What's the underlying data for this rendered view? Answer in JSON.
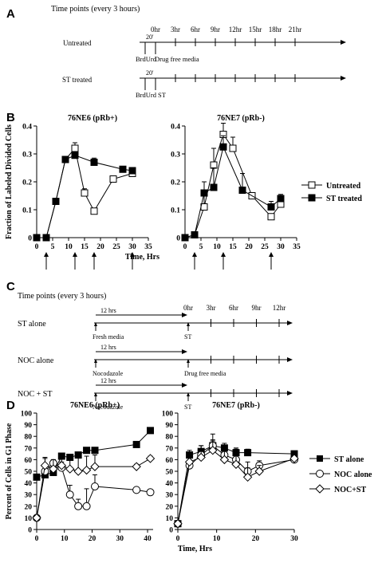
{
  "panel_a": {
    "label": "A",
    "heading": "Time points (every 3 hours)",
    "row1_label": "Untreated",
    "row2_label": "ST treated",
    "timepoints": [
      "0hr",
      "3hr",
      "6hr",
      "9hr",
      "12hr",
      "15hr",
      "18hr",
      "21hr"
    ],
    "gap": "20'",
    "row1_notes": [
      "BrdUrd",
      "Drug free media"
    ],
    "row2_notes": [
      "BrdUrd",
      "ST"
    ]
  },
  "panel_b": {
    "label": "B",
    "legend": [
      "Untreated",
      "ST treated"
    ]
  },
  "panel_c": {
    "label": "C",
    "heading": "Time points (every 3 hours)",
    "timepoints": [
      "0hr",
      "3hr",
      "6hr",
      "9hr",
      "12hr"
    ],
    "interval": "12 hrs",
    "rows": [
      {
        "label": "ST alone",
        "left_note": "Fresh media",
        "right_note": "ST"
      },
      {
        "label": "NOC alone",
        "left_note": "Nocodazole",
        "right_note": "Drug free media"
      },
      {
        "label": "NOC + ST",
        "left_note": "Nocodazole",
        "right_note": "ST"
      }
    ]
  },
  "panel_d": {
    "label": "D",
    "legend": [
      "ST alone",
      "NOC alone",
      "NOC+ST"
    ]
  },
  "chart_data": [
    {
      "type": "line",
      "panel": "B",
      "title": "76NE6 (pRb+)",
      "xlabel": "Time, Hrs",
      "ylabel": "Fraction of Labeled Divided Cells",
      "xlim": [
        0,
        35
      ],
      "ylim": [
        0,
        0.4
      ],
      "xticks": [
        0,
        5,
        10,
        15,
        20,
        25,
        30,
        35
      ],
      "yticks": [
        0,
        0.1,
        0.2,
        0.3,
        0.4
      ],
      "ytick_labels": [
        "0",
        "0.1",
        "0.2",
        "0.3",
        "0.4"
      ],
      "grid": false,
      "arrows_at": [
        3,
        12,
        18,
        30
      ],
      "series": [
        {
          "name": "Untreated",
          "marker": "open-square",
          "x": [
            0,
            3,
            6,
            9,
            12,
            15,
            18,
            24,
            30
          ],
          "y": [
            0.0,
            0.0,
            0.13,
            0.28,
            0.32,
            0.16,
            0.095,
            0.21,
            0.23
          ],
          "err": [
            0.003,
            0.003,
            0.005,
            0.008,
            0.02,
            0.015,
            0.005,
            0.005,
            0.015
          ]
        },
        {
          "name": "ST treated",
          "marker": "filled-square",
          "x": [
            0,
            3,
            6,
            9,
            12,
            18,
            27,
            30
          ],
          "y": [
            0.0,
            0.0,
            0.13,
            0.28,
            0.295,
            0.27,
            0.245,
            0.24
          ],
          "err": [
            0.003,
            0.003,
            0.005,
            0.008,
            0.012,
            0.015,
            0.005,
            0.01
          ]
        }
      ]
    },
    {
      "type": "line",
      "panel": "B",
      "title": "76NE7 (pRb-)",
      "xlabel": "",
      "ylabel": "",
      "xlim": [
        0,
        35
      ],
      "ylim": [
        0,
        0.4
      ],
      "xticks": [
        0,
        5,
        10,
        15,
        20,
        25,
        30,
        35
      ],
      "yticks": [
        0,
        0.1,
        0.2,
        0.3,
        0.4
      ],
      "ytick_labels": [
        "0",
        "0.1",
        "0.2",
        "0.3",
        "0.4"
      ],
      "grid": false,
      "arrows_at": [
        3,
        12,
        27
      ],
      "series": [
        {
          "name": "Untreated",
          "marker": "open-square",
          "x": [
            0,
            3,
            6,
            9,
            12,
            15,
            21,
            27,
            30
          ],
          "y": [
            0.0,
            0.01,
            0.11,
            0.26,
            0.37,
            0.32,
            0.15,
            0.075,
            0.12
          ],
          "err": [
            0.003,
            0.003,
            0.05,
            0.06,
            0.04,
            0.04,
            0.005,
            0.01,
            0.02
          ]
        },
        {
          "name": "ST treated",
          "marker": "filled-square",
          "x": [
            0,
            3,
            6,
            9,
            12,
            18,
            27,
            30
          ],
          "y": [
            0.0,
            0.01,
            0.16,
            0.18,
            0.325,
            0.17,
            0.11,
            0.14
          ],
          "err": [
            0.003,
            0.003,
            0.04,
            0.07,
            0.04,
            0.06,
            0.02,
            0.015
          ]
        }
      ]
    },
    {
      "type": "line",
      "panel": "D",
      "title": "76NE6 (pRb+)",
      "xlabel": "Time, Hrs",
      "ylabel": "Percent of Cells in G1 Phase",
      "xlim": [
        0,
        42
      ],
      "ylim": [
        0,
        100
      ],
      "xticks": [
        0,
        10,
        20,
        30,
        40
      ],
      "yticks": [
        0,
        10,
        20,
        30,
        40,
        50,
        60,
        70,
        80,
        90,
        100
      ],
      "ytick_labels": [
        "0",
        "10",
        "20",
        "30",
        "40",
        "50",
        "60",
        "70",
        "80",
        "90",
        "100"
      ],
      "grid": false,
      "series": [
        {
          "name": "ST alone",
          "marker": "filled-square",
          "x": [
            0,
            3,
            6,
            9,
            12,
            15,
            18,
            21,
            36,
            41
          ],
          "y": [
            45,
            47,
            49,
            63,
            62,
            64,
            68,
            68,
            73,
            85
          ],
          "err": [
            1,
            2,
            2,
            2,
            2,
            2,
            2,
            2,
            2,
            2
          ]
        },
        {
          "name": "NOC alone",
          "marker": "open-circle",
          "x": [
            0,
            3,
            6,
            9,
            12,
            15,
            18,
            21,
            36,
            41
          ],
          "y": [
            10,
            50,
            57,
            53,
            30,
            20,
            20,
            37,
            34,
            32
          ],
          "err": [
            2,
            12,
            3,
            5,
            8,
            6,
            15,
            10,
            2,
            2
          ]
        },
        {
          "name": "NOC+ST",
          "marker": "open-diamond",
          "x": [
            0,
            3,
            6,
            9,
            12,
            15,
            18,
            21,
            36,
            41
          ],
          "y": [
            10,
            55,
            52,
            55,
            52,
            50,
            51,
            54,
            54,
            61
          ],
          "err": [
            2,
            6,
            8,
            6,
            12,
            15,
            12,
            10,
            2,
            2
          ]
        }
      ]
    },
    {
      "type": "line",
      "panel": "D",
      "title": "76NE7 (pRb-)",
      "xlabel": "",
      "ylabel": "",
      "xlim": [
        0,
        30
      ],
      "ylim": [
        0,
        100
      ],
      "xticks": [
        0,
        10,
        20,
        30
      ],
      "yticks": [
        0,
        10,
        20,
        30,
        40,
        50,
        60,
        70,
        80,
        90,
        100
      ],
      "ytick_labels": [
        "0",
        "10",
        "20",
        "30",
        "40",
        "50",
        "60",
        "70",
        "80",
        "90",
        "100"
      ],
      "grid": false,
      "series": [
        {
          "name": "ST alone",
          "marker": "filled-square",
          "x": [
            0,
            3,
            6,
            9,
            12,
            15,
            18,
            30
          ],
          "y": [
            5,
            64,
            67,
            72,
            70,
            66,
            66,
            65
          ],
          "err": [
            1,
            4,
            5,
            5,
            4,
            3,
            3,
            2
          ]
        },
        {
          "name": "NOC alone",
          "marker": "open-circle",
          "x": [
            0,
            3,
            6,
            9,
            12,
            15,
            18,
            21,
            30
          ],
          "y": [
            5,
            55,
            64,
            72,
            64,
            60,
            50,
            55,
            60
          ],
          "err": [
            1,
            5,
            8,
            10,
            8,
            10,
            8,
            4,
            2
          ]
        },
        {
          "name": "NOC+ST",
          "marker": "open-diamond",
          "x": [
            0,
            3,
            6,
            9,
            12,
            15,
            18,
            21,
            30
          ],
          "y": [
            5,
            58,
            62,
            68,
            60,
            56,
            45,
            50,
            61
          ],
          "err": [
            1,
            5,
            6,
            8,
            10,
            10,
            8,
            5,
            2
          ]
        }
      ]
    }
  ]
}
